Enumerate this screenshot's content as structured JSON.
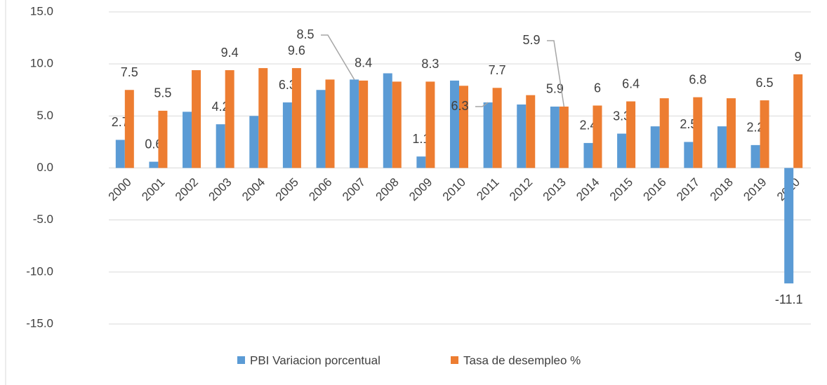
{
  "chart_data": {
    "type": "bar",
    "categories": [
      "2000",
      "2001",
      "2002",
      "2003",
      "2004",
      "2005",
      "2006",
      "2007",
      "2008",
      "2009",
      "2010",
      "2011",
      "2012",
      "2013",
      "2014",
      "2015",
      "2016",
      "2017",
      "2018",
      "2019",
      "2020"
    ],
    "series": [
      {
        "name": "PBI Variacion porcentual",
        "color": "#5b9bd5",
        "values": [
          2.7,
          0.6,
          5.4,
          4.2,
          5.0,
          6.3,
          7.5,
          8.5,
          9.1,
          1.1,
          8.4,
          6.3,
          6.1,
          5.9,
          2.4,
          3.3,
          4.0,
          2.5,
          4.0,
          2.2,
          -11.1
        ],
        "value_labels": [
          "2.7",
          "0.6",
          null,
          "4.2",
          null,
          "6.3",
          null,
          "8.5",
          null,
          "1.1",
          null,
          "6.3",
          null,
          "5.9",
          "2.4",
          "3.3",
          null,
          "2.5",
          null,
          "2.2",
          "-11.1"
        ]
      },
      {
        "name": "Tasa de desempleo %",
        "color": "#ed7d31",
        "values": [
          7.5,
          5.5,
          9.4,
          9.4,
          9.6,
          9.6,
          8.5,
          8.4,
          8.3,
          8.3,
          7.9,
          7.7,
          7.0,
          5.9,
          6,
          6.4,
          6.7,
          6.8,
          6.7,
          6.5,
          9
        ],
        "value_labels": [
          "7.5",
          "5.5",
          null,
          "9.4",
          null,
          "9.6",
          null,
          "8.4",
          null,
          "8.3",
          null,
          "7.7",
          null,
          "5.9",
          "6",
          "6.4",
          null,
          "6.8",
          null,
          "6.5",
          "9"
        ]
      }
    ],
    "ylim": [
      -15,
      15
    ],
    "yticks": [
      {
        "value": -15,
        "label": "-15.0"
      },
      {
        "value": -10,
        "label": "-10.0"
      },
      {
        "value": -5,
        "label": "-5.0"
      },
      {
        "value": 0,
        "label": "0.0"
      },
      {
        "value": 5,
        "label": "5.0"
      },
      {
        "value": 10,
        "label": "10.0"
      },
      {
        "value": 15,
        "label": "15.0"
      }
    ],
    "grid": true,
    "legend": "bottom"
  }
}
